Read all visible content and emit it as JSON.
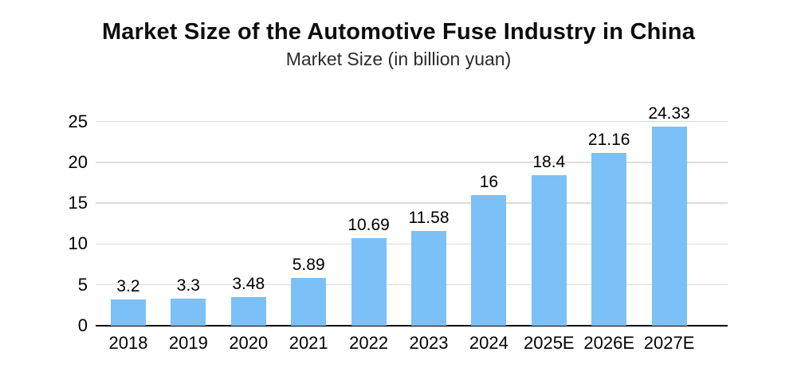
{
  "page": {
    "title": "Market Size of the Automotive Fuse Industry in China",
    "subtitle": "Market Size (in billion yuan)"
  },
  "chart_data": {
    "type": "bar",
    "title": "Market Size of the Automotive Fuse Industry in China",
    "subtitle": "Market Size (in billion yuan)",
    "categories": [
      "2018",
      "2019",
      "2020",
      "2021",
      "2022",
      "2023",
      "2024",
      "2025E",
      "2026E",
      "2027E"
    ],
    "values": [
      3.2,
      3.3,
      3.48,
      5.89,
      10.69,
      11.58,
      16,
      18.4,
      21.16,
      24.33
    ],
    "value_labels": [
      "3.2",
      "3.3",
      "3.48",
      "5.89",
      "10.69",
      "11.58",
      "16",
      "18.4",
      "21.16",
      "24.33"
    ],
    "xlabel": "",
    "ylabel": "",
    "ylim": [
      0,
      25
    ],
    "yticks": [
      0,
      5,
      10,
      15,
      20,
      25
    ],
    "grid": "horizontal",
    "legend": "none",
    "colors": {
      "bar": "#7CC0F8",
      "gridline": "#DCDCDC",
      "axis": "#000000",
      "text": "#000000"
    }
  }
}
